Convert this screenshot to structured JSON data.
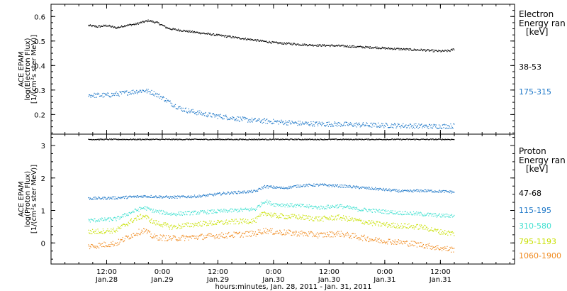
{
  "chart_data": [
    {
      "type": "scatter",
      "title": "",
      "ylabel": [
        "ACE EPAM",
        "log(Electron Flux)",
        "[1/(cm²s ster MeV)]"
      ],
      "ylim": [
        0.12,
        0.65
      ],
      "yticks": [
        0.2,
        0.3,
        0.4,
        0.5,
        0.6
      ],
      "yticklabels": [
        "0.2",
        "0.3",
        "0.4",
        "0.5",
        "0.6"
      ],
      "legend_title": [
        "Electron",
        "Energy ran",
        "[keV]"
      ],
      "series": [
        {
          "name": "38-53",
          "color": "#000000",
          "noise": 0.004,
          "points": [
            [
              0,
              0.565
            ],
            [
              2,
              0.56
            ],
            [
              4,
              0.565
            ],
            [
              6,
              0.555
            ],
            [
              8,
              0.565
            ],
            [
              10,
              0.57
            ],
            [
              11,
              0.575
            ],
            [
              12,
              0.58
            ],
            [
              13,
              0.585
            ],
            [
              14,
              0.58
            ],
            [
              15,
              0.575
            ],
            [
              16,
              0.565
            ],
            [
              17,
              0.555
            ],
            [
              18,
              0.55
            ],
            [
              20,
              0.545
            ],
            [
              22,
              0.54
            ],
            [
              24,
              0.535
            ],
            [
              26,
              0.53
            ],
            [
              28,
              0.525
            ],
            [
              30,
              0.52
            ],
            [
              32,
              0.515
            ],
            [
              34,
              0.51
            ],
            [
              36,
              0.505
            ],
            [
              38,
              0.5
            ],
            [
              40,
              0.495
            ],
            [
              42,
              0.492
            ],
            [
              44,
              0.49
            ],
            [
              46,
              0.487
            ],
            [
              48,
              0.485
            ],
            [
              50,
              0.484
            ],
            [
              52,
              0.483
            ],
            [
              54,
              0.482
            ],
            [
              56,
              0.48
            ],
            [
              58,
              0.478
            ],
            [
              60,
              0.476
            ],
            [
              62,
              0.475
            ],
            [
              64,
              0.472
            ],
            [
              66,
              0.47
            ],
            [
              68,
              0.468
            ],
            [
              70,
              0.466
            ],
            [
              72,
              0.465
            ],
            [
              74,
              0.462
            ],
            [
              76,
              0.46
            ],
            [
              78,
              0.462
            ],
            [
              79,
              0.47
            ]
          ]
        },
        {
          "name": "175-315",
          "color": "#1f78c8",
          "noise": 0.01,
          "points": [
            [
              0,
              0.28
            ],
            [
              4,
              0.28
            ],
            [
              8,
              0.29
            ],
            [
              10,
              0.295
            ],
            [
              12,
              0.3
            ],
            [
              14,
              0.29
            ],
            [
              16,
              0.27
            ],
            [
              18,
              0.245
            ],
            [
              20,
              0.225
            ],
            [
              22,
              0.215
            ],
            [
              26,
              0.2
            ],
            [
              30,
              0.19
            ],
            [
              34,
              0.18
            ],
            [
              38,
              0.175
            ],
            [
              42,
              0.17
            ],
            [
              46,
              0.165
            ],
            [
              50,
              0.163
            ],
            [
              54,
              0.162
            ],
            [
              58,
              0.16
            ],
            [
              62,
              0.158
            ],
            [
              66,
              0.157
            ],
            [
              70,
              0.155
            ],
            [
              74,
              0.153
            ],
            [
              79,
              0.155
            ]
          ]
        }
      ]
    },
    {
      "type": "scatter",
      "title": "",
      "ylabel": [
        "ACE EPAM",
        "log(Proton Flux)",
        "[1/(cm²s ster MeV)]"
      ],
      "ylim": [
        -0.65,
        3.35
      ],
      "yticks": [
        0,
        1,
        2,
        3
      ],
      "yticklabels": [
        "0",
        "1",
        "2",
        "3"
      ],
      "legend_title": [
        "Proton",
        "Energy ran",
        "[keV]"
      ],
      "series": [
        {
          "name": "47-68",
          "color": "#000000",
          "noise": 0.015,
          "points": [
            [
              0,
              3.2
            ],
            [
              40,
              3.2
            ],
            [
              79,
              3.2
            ]
          ]
        },
        {
          "name": "115-195",
          "color": "#1f78c8",
          "noise": 0.04,
          "points": [
            [
              0,
              1.38
            ],
            [
              6,
              1.4
            ],
            [
              12,
              1.45
            ],
            [
              18,
              1.42
            ],
            [
              24,
              1.45
            ],
            [
              30,
              1.55
            ],
            [
              36,
              1.6
            ],
            [
              38,
              1.75
            ],
            [
              42,
              1.7
            ],
            [
              46,
              1.78
            ],
            [
              50,
              1.8
            ],
            [
              56,
              1.75
            ],
            [
              60,
              1.7
            ],
            [
              64,
              1.65
            ],
            [
              68,
              1.6
            ],
            [
              72,
              1.62
            ],
            [
              76,
              1.6
            ],
            [
              79,
              1.58
            ]
          ]
        },
        {
          "name": "310-580",
          "color": "#40e0d0",
          "noise": 0.06,
          "points": [
            [
              0,
              0.7
            ],
            [
              6,
              0.75
            ],
            [
              10,
              1.0
            ],
            [
              12,
              1.1
            ],
            [
              14,
              1.0
            ],
            [
              18,
              0.9
            ],
            [
              24,
              0.95
            ],
            [
              30,
              1.0
            ],
            [
              36,
              1.05
            ],
            [
              38,
              1.3
            ],
            [
              40,
              1.2
            ],
            [
              46,
              1.15
            ],
            [
              50,
              1.1
            ],
            [
              54,
              1.15
            ],
            [
              58,
              1.05
            ],
            [
              62,
              1.0
            ],
            [
              66,
              0.95
            ],
            [
              72,
              0.9
            ],
            [
              76,
              0.85
            ],
            [
              79,
              0.85
            ]
          ]
        },
        {
          "name": "795-1193",
          "color": "#c8e000",
          "noise": 0.08,
          "points": [
            [
              0,
              0.35
            ],
            [
              6,
              0.4
            ],
            [
              10,
              0.75
            ],
            [
              12,
              0.85
            ],
            [
              14,
              0.65
            ],
            [
              18,
              0.5
            ],
            [
              24,
              0.6
            ],
            [
              30,
              0.65
            ],
            [
              36,
              0.7
            ],
            [
              38,
              0.95
            ],
            [
              40,
              0.85
            ],
            [
              46,
              0.8
            ],
            [
              50,
              0.75
            ],
            [
              54,
              0.8
            ],
            [
              58,
              0.7
            ],
            [
              62,
              0.6
            ],
            [
              66,
              0.55
            ],
            [
              72,
              0.5
            ],
            [
              76,
              0.35
            ],
            [
              79,
              0.3
            ]
          ]
        },
        {
          "name": "1060-1900",
          "color": "#f08a1e",
          "noise": 0.09,
          "points": [
            [
              0,
              -0.1
            ],
            [
              6,
              0.0
            ],
            [
              10,
              0.3
            ],
            [
              12,
              0.4
            ],
            [
              14,
              0.2
            ],
            [
              18,
              0.15
            ],
            [
              24,
              0.2
            ],
            [
              30,
              0.25
            ],
            [
              36,
              0.3
            ],
            [
              38,
              0.4
            ],
            [
              40,
              0.35
            ],
            [
              46,
              0.3
            ],
            [
              50,
              0.25
            ],
            [
              54,
              0.3
            ],
            [
              58,
              0.2
            ],
            [
              62,
              0.1
            ],
            [
              66,
              0.05
            ],
            [
              72,
              -0.05
            ],
            [
              76,
              -0.15
            ],
            [
              79,
              -0.2
            ]
          ]
        }
      ]
    }
  ],
  "x_axis": {
    "xlabel": "hours:minutes, Jan. 28, 2011 - Jan. 31, 2011",
    "xlim_hours": [
      -8,
      92
    ],
    "ticks": [
      {
        "hours": 4,
        "time": "12:00",
        "date": "Jan.28"
      },
      {
        "hours": 16,
        "time": "0:00",
        "date": "Jan.29"
      },
      {
        "hours": 28,
        "time": "12:00",
        "date": "Jan.29"
      },
      {
        "hours": 40,
        "time": "0:00",
        "date": "Jan.30"
      },
      {
        "hours": 52,
        "time": "12:00",
        "date": "Jan.30"
      },
      {
        "hours": 64,
        "time": "0:00",
        "date": "Jan.31"
      },
      {
        "hours": 76,
        "time": "12:00",
        "date": "Jan.31"
      }
    ]
  }
}
